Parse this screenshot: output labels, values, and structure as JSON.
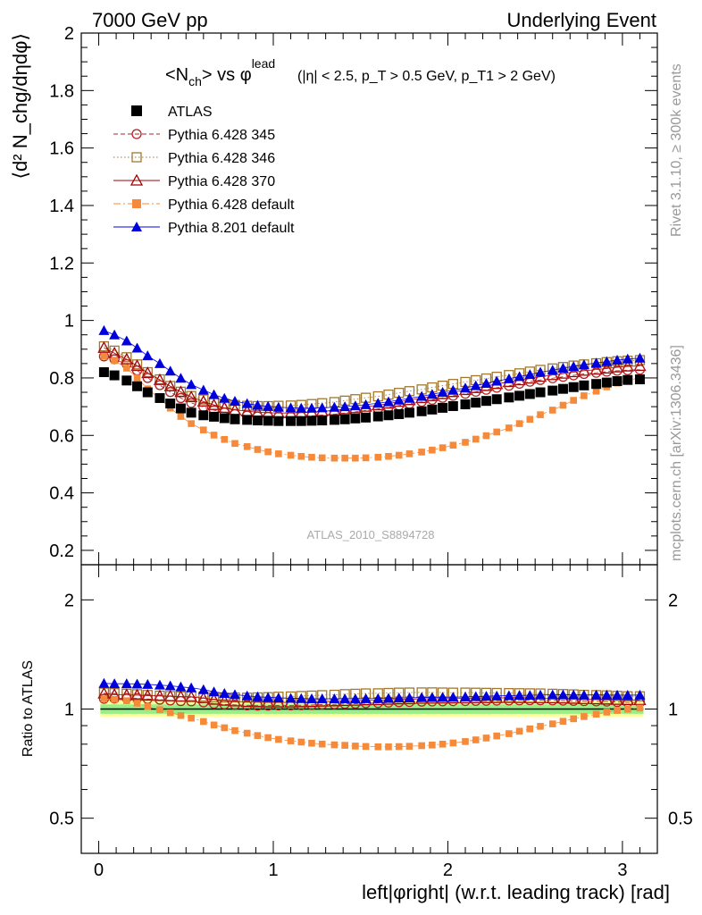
{
  "header": {
    "left": "7000 GeV pp",
    "right": "Underlying Event"
  },
  "title": {
    "observable": "<N",
    "observable_sub": "ch",
    "observable_tail": "> vs φ",
    "observable_sup": "lead",
    "cuts": "(|η| < 2.5, p_T > 0.5 GeV, p_T1 > 2 GeV)"
  },
  "y_label": "⟨d² N_chg/dηdφ⟩",
  "ratio_label": "Ratio to ATLAS",
  "x_label": "left|φright| (w.r.t. leading track) [rad]",
  "watermark": "ATLAS_2010_S8894728",
  "side_text": {
    "top": "Rivet 3.1.10, ≥ 300k events",
    "bottom": "mcplots.cern.ch [arXiv:1306.3436]"
  },
  "axes": {
    "main_y_ticks": [
      "0.2",
      "0.4",
      "0.6",
      "0.8",
      "1",
      "1.2",
      "1.4",
      "1.6",
      "1.8",
      "2"
    ],
    "ratio_y_ticks": [
      "0.5",
      "1",
      "2"
    ],
    "x_ticks": [
      "0",
      "1",
      "2",
      "3"
    ]
  },
  "chart_data": {
    "type": "scatter",
    "x": [
      0.03,
      0.09,
      0.16,
      0.22,
      0.28,
      0.35,
      0.41,
      0.47,
      0.53,
      0.6,
      0.66,
      0.72,
      0.78,
      0.85,
      0.91,
      0.97,
      1.03,
      1.1,
      1.16,
      1.22,
      1.28,
      1.35,
      1.41,
      1.47,
      1.53,
      1.6,
      1.66,
      1.72,
      1.78,
      1.85,
      1.91,
      1.97,
      2.03,
      2.1,
      2.16,
      2.22,
      2.28,
      2.35,
      2.41,
      2.47,
      2.53,
      2.6,
      2.66,
      2.72,
      2.78,
      2.85,
      2.91,
      2.97,
      3.03,
      3.1
    ],
    "xlim": [
      -0.1,
      3.2
    ],
    "ylim": [
      0.15,
      2.0
    ],
    "ratio_ylim": [
      0.4,
      2.5
    ],
    "ratio_log": true,
    "legend_position": "top-left",
    "series": [
      {
        "name": "ATLAS",
        "color": "#000000",
        "marker": "filled-square",
        "line": "none",
        "values": [
          0.82,
          0.809,
          0.791,
          0.771,
          0.75,
          0.73,
          0.711,
          0.694,
          0.679,
          0.67,
          0.665,
          0.66,
          0.656,
          0.654,
          0.652,
          0.651,
          0.65,
          0.65,
          0.65,
          0.651,
          0.652,
          0.654,
          0.656,
          0.659,
          0.662,
          0.666,
          0.67,
          0.674,
          0.679,
          0.684,
          0.69,
          0.696,
          0.702,
          0.708,
          0.714,
          0.72,
          0.726,
          0.732,
          0.738,
          0.744,
          0.75,
          0.756,
          0.762,
          0.768,
          0.774,
          0.779,
          0.784,
          0.789,
          0.793,
          0.795
        ]
      },
      {
        "name": "Pythia 6.428 345",
        "color": "#b22222",
        "marker": "open-circle",
        "line": "dashed",
        "values": [
          0.875,
          0.865,
          0.848,
          0.826,
          0.8,
          0.775,
          0.751,
          0.73,
          0.713,
          0.699,
          0.688,
          0.68,
          0.674,
          0.669,
          0.666,
          0.665,
          0.665,
          0.665,
          0.666,
          0.668,
          0.671,
          0.674,
          0.678,
          0.682,
          0.687,
          0.692,
          0.698,
          0.704,
          0.71,
          0.717,
          0.724,
          0.731,
          0.738,
          0.745,
          0.752,
          0.759,
          0.766,
          0.773,
          0.78,
          0.787,
          0.793,
          0.799,
          0.804,
          0.809,
          0.814,
          0.818,
          0.822,
          0.825,
          0.827,
          0.829
        ]
      },
      {
        "name": "Pythia 6.428 346",
        "color": "#a07830",
        "marker": "open-square",
        "line": "dotted",
        "values": [
          0.91,
          0.895,
          0.872,
          0.847,
          0.82,
          0.795,
          0.772,
          0.752,
          0.737,
          0.725,
          0.716,
          0.71,
          0.706,
          0.703,
          0.702,
          0.702,
          0.703,
          0.704,
          0.706,
          0.709,
          0.712,
          0.716,
          0.721,
          0.726,
          0.731,
          0.736,
          0.742,
          0.748,
          0.754,
          0.76,
          0.767,
          0.773,
          0.779,
          0.786,
          0.792,
          0.798,
          0.804,
          0.81,
          0.816,
          0.822,
          0.828,
          0.833,
          0.838,
          0.843,
          0.847,
          0.851,
          0.855,
          0.858,
          0.86,
          0.862
        ]
      },
      {
        "name": "Pythia 6.428 370",
        "color": "#a00000",
        "marker": "open-triangle",
        "line": "solid",
        "values": [
          0.905,
          0.886,
          0.865,
          0.842,
          0.817,
          0.793,
          0.771,
          0.751,
          0.733,
          0.718,
          0.706,
          0.696,
          0.689,
          0.684,
          0.681,
          0.679,
          0.678,
          0.678,
          0.679,
          0.681,
          0.684,
          0.687,
          0.691,
          0.695,
          0.7,
          0.705,
          0.711,
          0.717,
          0.723,
          0.73,
          0.737,
          0.744,
          0.751,
          0.758,
          0.765,
          0.772,
          0.779,
          0.786,
          0.792,
          0.798,
          0.804,
          0.81,
          0.815,
          0.82,
          0.825,
          0.829,
          0.833,
          0.837,
          0.84,
          0.842
        ]
      },
      {
        "name": "Pythia 6.428 default",
        "color": "#f58a3a",
        "marker": "filled-square",
        "line": "dashdot",
        "values": [
          0.875,
          0.86,
          0.834,
          0.8,
          0.762,
          0.727,
          0.695,
          0.666,
          0.641,
          0.619,
          0.601,
          0.586,
          0.572,
          0.561,
          0.551,
          0.543,
          0.536,
          0.531,
          0.527,
          0.524,
          0.522,
          0.521,
          0.521,
          0.521,
          0.522,
          0.524,
          0.527,
          0.531,
          0.536,
          0.542,
          0.549,
          0.557,
          0.566,
          0.576,
          0.587,
          0.599,
          0.612,
          0.626,
          0.641,
          0.656,
          0.672,
          0.688,
          0.705,
          0.722,
          0.738,
          0.754,
          0.769,
          0.782,
          0.792,
          0.8
        ]
      },
      {
        "name": "Pythia 8.201 default",
        "color": "#0000dd",
        "marker": "filled-triangle",
        "line": "solid",
        "values": [
          0.965,
          0.95,
          0.929,
          0.904,
          0.877,
          0.85,
          0.824,
          0.799,
          0.777,
          0.758,
          0.742,
          0.729,
          0.719,
          0.711,
          0.705,
          0.701,
          0.698,
          0.696,
          0.695,
          0.695,
          0.696,
          0.698,
          0.7,
          0.703,
          0.707,
          0.712,
          0.717,
          0.723,
          0.729,
          0.736,
          0.743,
          0.75,
          0.757,
          0.765,
          0.773,
          0.781,
          0.789,
          0.797,
          0.805,
          0.812,
          0.82,
          0.827,
          0.834,
          0.84,
          0.846,
          0.852,
          0.857,
          0.862,
          0.866,
          0.869
        ]
      }
    ]
  }
}
